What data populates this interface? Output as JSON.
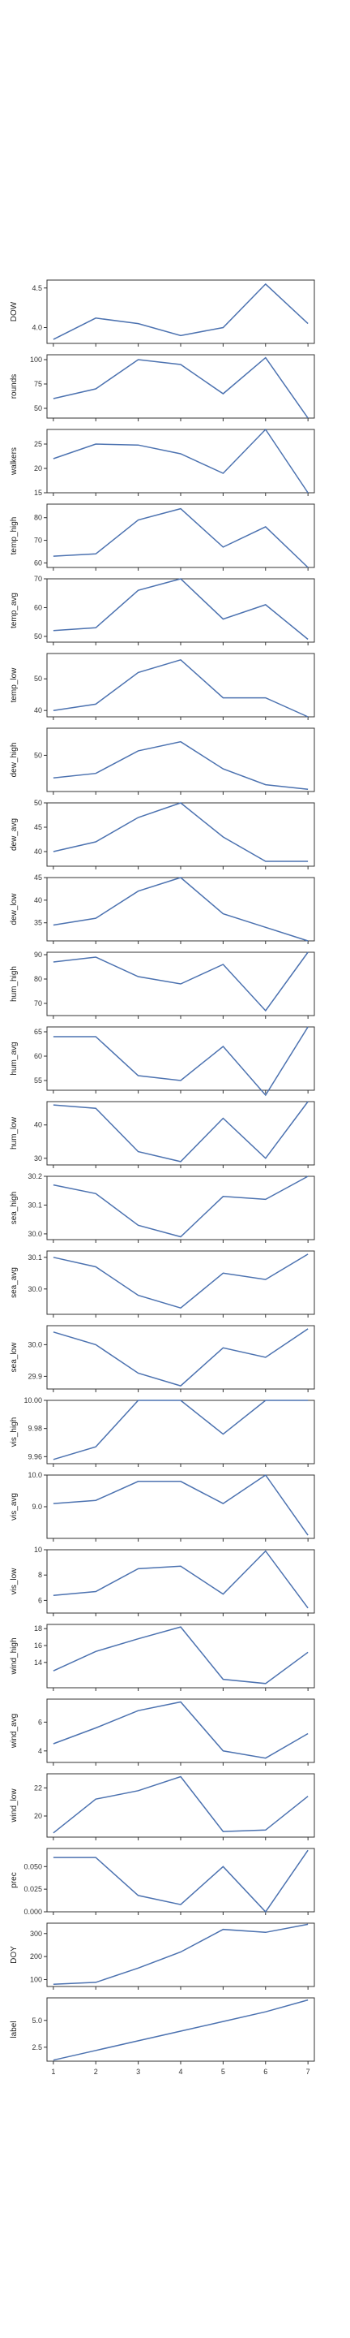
{
  "chart_data": {
    "type": "line",
    "x": [
      1,
      2,
      3,
      4,
      5,
      6,
      7
    ],
    "xticks": [
      "1",
      "2",
      "3",
      "4",
      "5",
      "6",
      "7"
    ],
    "line_color": "#4c72b0",
    "panels": [
      {
        "ylabel": "DOW",
        "ylim": [
          3.8,
          4.6
        ],
        "yticks": [
          "4.0",
          "4.5"
        ],
        "values": [
          3.85,
          4.12,
          4.05,
          3.9,
          4.0,
          4.55,
          4.05
        ]
      },
      {
        "ylabel": "rounds",
        "ylim": [
          40,
          105
        ],
        "yticks": [
          "50",
          "75",
          "100"
        ],
        "values": [
          60,
          70,
          100,
          95,
          65,
          102,
          40
        ]
      },
      {
        "ylabel": "walkers",
        "ylim": [
          15,
          28
        ],
        "yticks": [
          "15",
          "20",
          "25"
        ],
        "values": [
          22,
          25,
          24.8,
          23,
          19,
          28,
          15
        ]
      },
      {
        "ylabel": "temp_high",
        "ylim": [
          58,
          86
        ],
        "yticks": [
          "60",
          "70",
          "80"
        ],
        "values": [
          63,
          64,
          79,
          84,
          67,
          76,
          58
        ]
      },
      {
        "ylabel": "temp_avg",
        "ylim": [
          48,
          70
        ],
        "yticks": [
          "50",
          "60",
          "70"
        ],
        "values": [
          52,
          53,
          66,
          70,
          56,
          61,
          49
        ]
      },
      {
        "ylabel": "temp_low",
        "ylim": [
          38,
          58
        ],
        "yticks": [
          "40",
          "50"
        ],
        "values": [
          40,
          42,
          52,
          56,
          44,
          44,
          38
        ]
      },
      {
        "ylabel": "dew_high",
        "ylim": [
          42,
          56
        ],
        "yticks": [
          "50"
        ],
        "values": [
          45,
          46,
          51,
          53,
          47,
          43.5,
          42.5
        ]
      },
      {
        "ylabel": "dew_avg",
        "ylim": [
          37,
          50
        ],
        "yticks": [
          "40",
          "45",
          "50"
        ],
        "values": [
          40,
          42,
          47,
          50,
          43,
          38,
          38
        ]
      },
      {
        "ylabel": "dew_low",
        "ylim": [
          31,
          45
        ],
        "yticks": [
          "35",
          "40",
          "45"
        ],
        "values": [
          34.5,
          36,
          42,
          45,
          37,
          34,
          31
        ]
      },
      {
        "ylabel": "hum_high",
        "ylim": [
          65,
          91
        ],
        "yticks": [
          "70",
          "80",
          "90"
        ],
        "values": [
          87,
          89,
          81,
          78,
          86,
          67,
          91
        ]
      },
      {
        "ylabel": "hum_avg",
        "ylim": [
          53,
          66
        ],
        "yticks": [
          "55",
          "60",
          "65"
        ],
        "values": [
          64,
          64,
          56,
          55,
          62,
          52,
          66
        ]
      },
      {
        "ylabel": "hum_low",
        "ylim": [
          28,
          47
        ],
        "yticks": [
          "30",
          "40"
        ],
        "values": [
          46,
          45,
          32,
          29,
          42,
          30,
          47
        ]
      },
      {
        "ylabel": "sea_high",
        "ylim": [
          29.98,
          30.2
        ],
        "yticks": [
          "30.0",
          "30.1",
          "30.2"
        ],
        "values": [
          30.17,
          30.14,
          30.03,
          29.99,
          30.13,
          30.12,
          30.2
        ]
      },
      {
        "ylabel": "sea_avg",
        "ylim": [
          29.92,
          30.12
        ],
        "yticks": [
          "30.0",
          "30.1"
        ],
        "values": [
          30.1,
          30.07,
          29.98,
          29.94,
          30.05,
          30.03,
          30.11
        ]
      },
      {
        "ylabel": "sea_low",
        "ylim": [
          29.86,
          30.06
        ],
        "yticks": [
          "29.9",
          "30.0"
        ],
        "values": [
          30.04,
          30.0,
          29.91,
          29.87,
          29.99,
          29.96,
          30.05
        ]
      },
      {
        "ylabel": "vis_high",
        "ylim": [
          9.955,
          10.0
        ],
        "yticks": [
          "9.96",
          "9.98",
          "10.00"
        ],
        "values": [
          9.958,
          9.967,
          10.0,
          10.0,
          9.976,
          10.0,
          10.0
        ]
      },
      {
        "ylabel": "vis_avg",
        "ylim": [
          8.0,
          10.0
        ],
        "yticks": [
          "9.0",
          "10.0"
        ],
        "values": [
          9.1,
          9.2,
          9.8,
          9.8,
          9.1,
          10.0,
          8.1
        ]
      },
      {
        "ylabel": "vis_low",
        "ylim": [
          5.0,
          10.0
        ],
        "yticks": [
          "6",
          "8",
          "10"
        ],
        "values": [
          6.4,
          6.7,
          8.5,
          8.7,
          6.5,
          9.9,
          5.4
        ]
      },
      {
        "ylabel": "wind_high",
        "ylim": [
          11,
          18.5
        ],
        "yticks": [
          "14",
          "16",
          "18"
        ],
        "values": [
          13,
          15.3,
          16.8,
          18.2,
          12,
          11.5,
          15.2
        ]
      },
      {
        "ylabel": "wind_avg",
        "ylim": [
          3.2,
          7.6
        ],
        "yticks": [
          "4",
          "6"
        ],
        "values": [
          4.5,
          5.6,
          6.8,
          7.4,
          4.0,
          3.5,
          5.2
        ]
      },
      {
        "ylabel": "wind_low",
        "ylim": [
          18.5,
          23
        ],
        "yticks": [
          "20",
          "22"
        ],
        "values": [
          18.8,
          21.2,
          21.8,
          22.8,
          18.9,
          19.0,
          21.4
        ]
      },
      {
        "ylabel": "prec",
        "ylim": [
          0,
          0.07
        ],
        "yticks": [
          "0.000",
          "0.025",
          "0.050"
        ],
        "values": [
          0.06,
          0.06,
          0.018,
          0.008,
          0.05,
          0.0,
          0.068
        ]
      },
      {
        "ylabel": "DOY",
        "ylim": [
          70,
          345
        ],
        "yticks": [
          "100",
          "200",
          "300"
        ],
        "values": [
          80,
          88,
          150,
          220,
          318,
          305,
          340
        ]
      },
      {
        "ylabel": "label",
        "ylim": [
          1.2,
          7.1
        ],
        "yticks": [
          "2.5",
          "5.0"
        ],
        "values": [
          1.3,
          2.2,
          3.1,
          4.0,
          4.9,
          5.8,
          6.9
        ]
      }
    ]
  }
}
